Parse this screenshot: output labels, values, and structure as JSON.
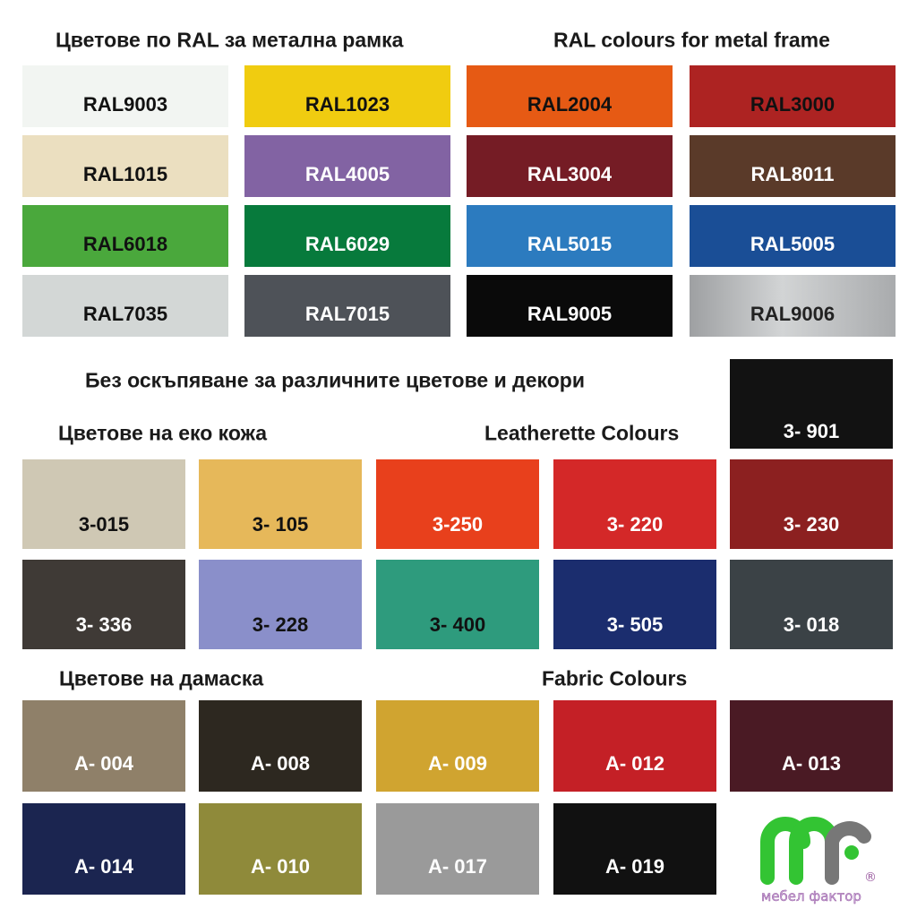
{
  "headings": {
    "ral_bg": "Цветове по RAL за метална рамка",
    "ral_en": "RAL colours for metal frame",
    "no_surcharge": "Без оскъпяване за различните цветове и декори",
    "leather_bg": "Цветове на еко кожа",
    "leather_en": "Leatherette Colours",
    "fabric_bg": "Цветове на дамаска",
    "fabric_en": "Fabric Colours"
  },
  "ral": [
    {
      "label": "RAL9003",
      "color": "#f2f5f2",
      "text": "#111"
    },
    {
      "label": "RAL1023",
      "color": "#f0cc10",
      "text": "#111"
    },
    {
      "label": "RAL2004",
      "color": "#e65a14",
      "text": "#111"
    },
    {
      "label": "RAL3000",
      "color": "#ad2322",
      "text": "#111"
    },
    {
      "label": "RAL1015",
      "color": "#ebdfc0",
      "text": "#111"
    },
    {
      "label": "RAL4005",
      "color": "#8263a3",
      "text": "#fff"
    },
    {
      "label": "RAL3004",
      "color": "#751c25",
      "text": "#fff"
    },
    {
      "label": "RAL8011",
      "color": "#5a3a29",
      "text": "#fff"
    },
    {
      "label": "RAL6018",
      "color": "#4aa83c",
      "text": "#111"
    },
    {
      "label": "RAL6029",
      "color": "#077a3c",
      "text": "#fff"
    },
    {
      "label": "RAL5015",
      "color": "#2c7bbf",
      "text": "#fff"
    },
    {
      "label": "RAL5005",
      "color": "#1a4e96",
      "text": "#fff"
    },
    {
      "label": "RAL7035",
      "color": "#d3d7d6",
      "text": "#111"
    },
    {
      "label": "RAL7015",
      "color": "#4e5258",
      "text": "#fff"
    },
    {
      "label": "RAL9005",
      "color": "#0a0a0a",
      "text": "#fff"
    },
    {
      "label": "RAL9006",
      "color": "#b4b6b7",
      "text": "#222"
    }
  ],
  "leatherette_top": {
    "label": "3- 901",
    "color": "#121212",
    "text": "#fff"
  },
  "leatherette": [
    {
      "label": "3-015",
      "color": "#cfc8b4",
      "text": "#111"
    },
    {
      "label": "3- 105",
      "color": "#e6b85a",
      "text": "#111"
    },
    {
      "label": "3-250",
      "color": "#e8401c",
      "text": "#fff"
    },
    {
      "label": "3- 220",
      "color": "#d42828",
      "text": "#fff"
    },
    {
      "label": "3- 230",
      "color": "#8c2020",
      "text": "#fff"
    },
    {
      "label": "3- 336",
      "color": "#3f3a36",
      "text": "#fff"
    },
    {
      "label": "3- 228",
      "color": "#8a8fca",
      "text": "#111"
    },
    {
      "label": "3- 400",
      "color": "#2e9b7d",
      "text": "#111"
    },
    {
      "label": "3- 505",
      "color": "#1b2d6e",
      "text": "#fff"
    },
    {
      "label": "3- 018",
      "color": "#3b4246",
      "text": "#fff"
    }
  ],
  "fabric": [
    {
      "label": "A- 004",
      "color": "#8f8069",
      "text": "#fff"
    },
    {
      "label": "A- 008",
      "color": "#2d2820",
      "text": "#fff"
    },
    {
      "label": "A- 009",
      "color": "#d0a430",
      "text": "#fff"
    },
    {
      "label": "A- 012",
      "color": "#c42026",
      "text": "#fff"
    },
    {
      "label": "A- 013",
      "color": "#4a1a24",
      "text": "#fff"
    },
    {
      "label": "A- 014",
      "color": "#1b2550",
      "text": "#fff"
    },
    {
      "label": "A- 010",
      "color": "#8f8a3a",
      "text": "#fff"
    },
    {
      "label": "A- 017",
      "color": "#9a9a9a",
      "text": "#fff"
    },
    {
      "label": "A- 019",
      "color": "#111111",
      "text": "#fff"
    }
  ],
  "logo": {
    "text": "мебел фактор",
    "green": "#33c433",
    "grey": "#777777"
  }
}
